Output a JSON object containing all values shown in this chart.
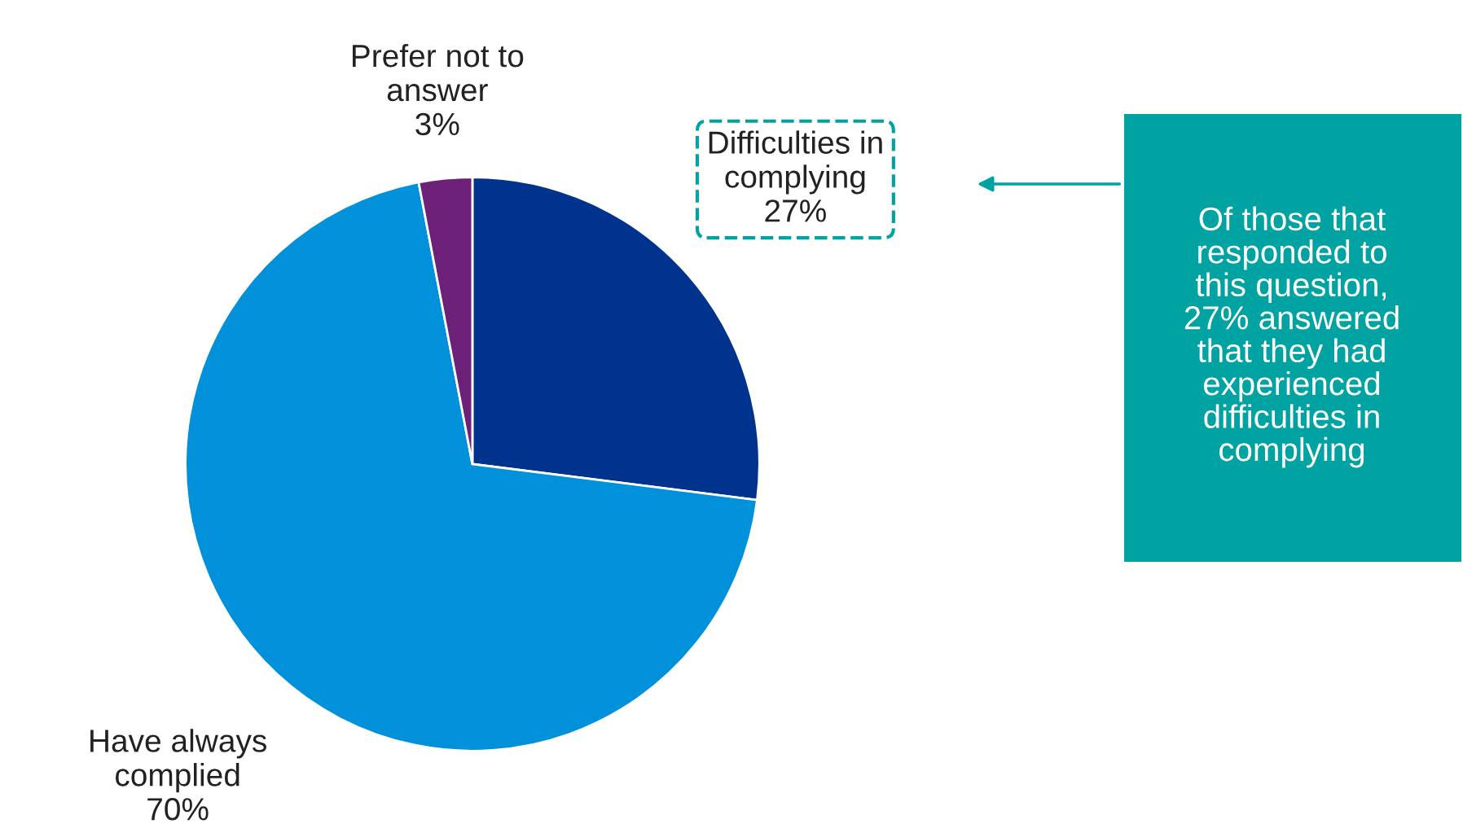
{
  "chart_data": {
    "type": "pie",
    "categories": [
      "Difficulties in\ncomplying",
      "Have always\ncomplied",
      "Prefer not to\nanswer"
    ],
    "values": [
      27,
      70,
      3
    ],
    "colors": [
      "#00338d",
      "#0091da",
      "#6d2077"
    ],
    "value_labels": [
      "27%",
      "70%",
      "3%"
    ],
    "legend": false,
    "annotations": [
      "Of those that\nresponded to\nthis question,\n27% answered\nthat they had\nexperienced\ndifficulties in\ncomplying"
    ]
  }
}
